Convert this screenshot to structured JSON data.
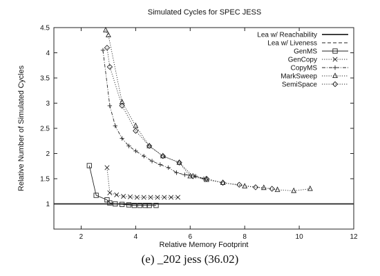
{
  "chart_data": {
    "type": "line",
    "title": "Simulated Cycles for SPEC JESS",
    "xlabel": "Relative Memory Footprint",
    "ylabel": "Relative Number of Simulated Cycles",
    "xlim": [
      1,
      12
    ],
    "ylim": [
      0.5,
      4.5
    ],
    "xticks": [
      "2",
      "4",
      "6",
      "8",
      "10",
      "12"
    ],
    "xtick_values": [
      2,
      4,
      6,
      8,
      10,
      12
    ],
    "yticks": [
      "1",
      "1.5",
      "2",
      "2.5",
      "3",
      "3.5",
      "4",
      "4.5"
    ],
    "ytick_values": [
      1,
      1.5,
      2,
      2.5,
      3,
      3.5,
      4,
      4.5
    ],
    "grid": false,
    "legend_position": "top-right",
    "series": [
      {
        "name": "Lea w/ Reachability",
        "style": "solid-thick",
        "marker": "none",
        "x": [
          1,
          12
        ],
        "y": [
          1.0,
          1.0
        ]
      },
      {
        "name": "Lea w/ Liveness",
        "style": "dashed",
        "marker": "none",
        "x": [
          1,
          12
        ],
        "y": [
          1.0,
          1.0
        ]
      },
      {
        "name": "GenMS",
        "style": "solid",
        "marker": "square",
        "x": [
          2.3,
          2.55,
          2.95,
          3.05,
          3.25,
          3.5,
          3.75,
          3.95,
          4.15,
          4.35,
          4.5,
          4.75
        ],
        "y": [
          1.76,
          1.17,
          1.08,
          1.02,
          1.0,
          0.99,
          0.98,
          0.97,
          0.97,
          0.97,
          0.97,
          0.97
        ]
      },
      {
        "name": "GenCopy",
        "style": "dotted",
        "marker": "x",
        "x": [
          2.95,
          3.05,
          3.3,
          3.55,
          3.8,
          4.05,
          4.3,
          4.55,
          4.8,
          5.05,
          5.3,
          5.55
        ],
        "y": [
          1.72,
          1.22,
          1.18,
          1.15,
          1.14,
          1.13,
          1.13,
          1.13,
          1.13,
          1.13,
          1.13,
          1.13
        ]
      },
      {
        "name": "CopyMS",
        "style": "dash-dot",
        "marker": "plus",
        "x": [
          2.8,
          3.05,
          3.25,
          3.5,
          3.75,
          4.0,
          4.3,
          4.6,
          4.9,
          5.2,
          5.5,
          5.8,
          6.2,
          6.5
        ],
        "y": [
          4.05,
          2.95,
          2.55,
          2.3,
          2.15,
          2.05,
          1.95,
          1.85,
          1.78,
          1.72,
          1.62,
          1.58,
          1.55,
          1.5
        ]
      },
      {
        "name": "MarkSweep",
        "style": "dotted",
        "marker": "triangle",
        "x": [
          2.9,
          3.0,
          3.5,
          4.0,
          4.5,
          5.0,
          5.6,
          6.0,
          6.6,
          7.2,
          8.0,
          8.7,
          9.2,
          9.8,
          10.4
        ],
        "y": [
          4.45,
          4.35,
          3.02,
          2.55,
          2.15,
          1.95,
          1.82,
          1.55,
          1.48,
          1.42,
          1.35,
          1.32,
          1.28,
          1.26,
          1.3
        ]
      },
      {
        "name": "SemiSpace",
        "style": "dotted",
        "marker": "diamond",
        "x": [
          2.95,
          3.05,
          3.5,
          4.0,
          4.5,
          5.0,
          5.6,
          6.1,
          6.6,
          7.2,
          7.8,
          8.4,
          9.0
        ],
        "y": [
          4.1,
          3.72,
          2.95,
          2.45,
          2.15,
          1.95,
          1.82,
          1.55,
          1.5,
          1.42,
          1.38,
          1.33,
          1.3
        ]
      }
    ]
  },
  "caption": "(e)  _202 jess (36.02)"
}
